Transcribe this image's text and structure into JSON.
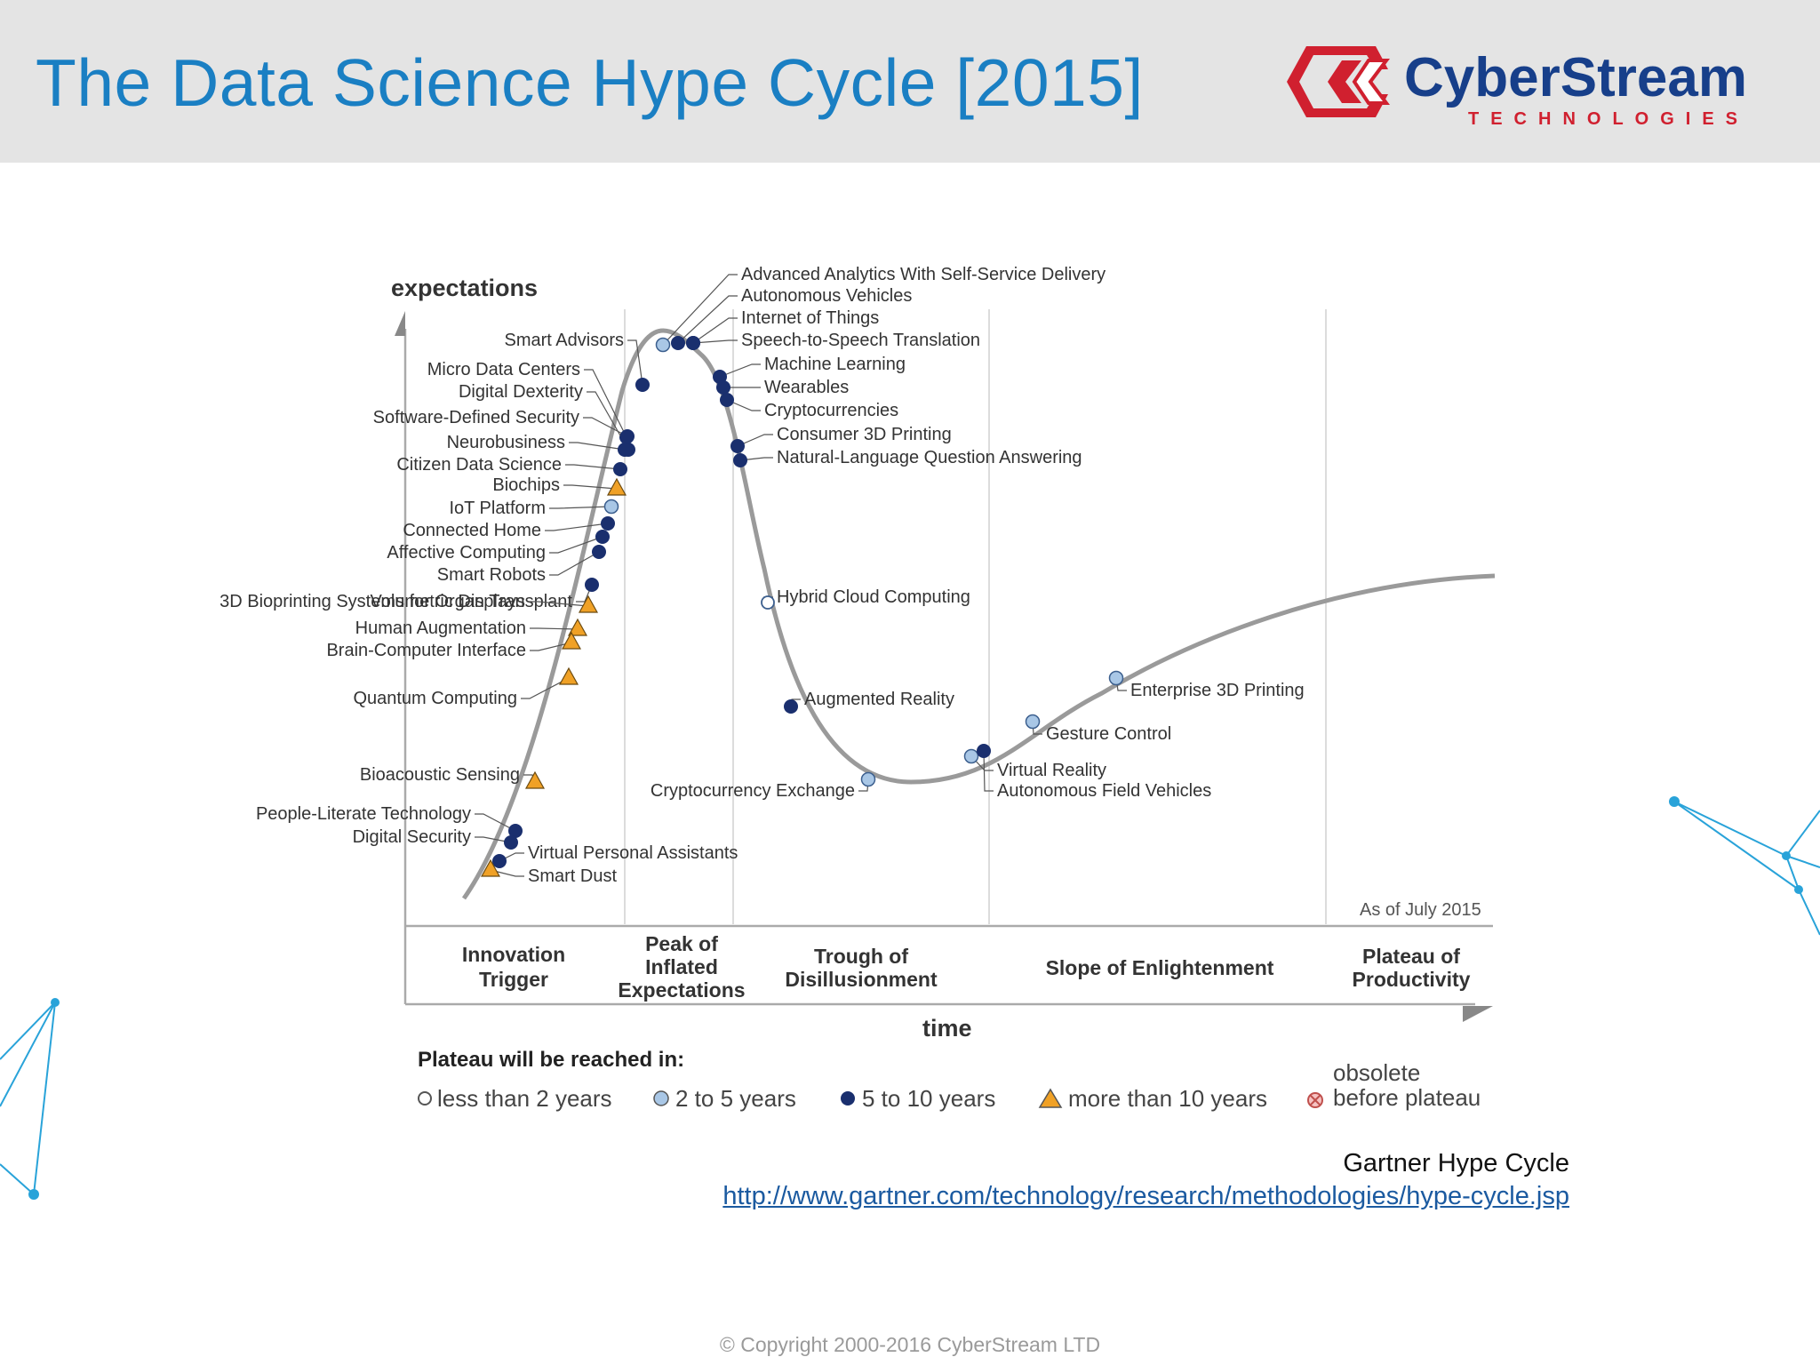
{
  "slide": {
    "title": "The Data Science Hype Cycle [2015]",
    "brand": {
      "name": "CyberStream",
      "tagline": "TECHNOLOGIES"
    },
    "source_caption": "Gartner Hype Cycle",
    "source_url": "http://www.gartner.com/technology/research/methodologies/hype-cycle.jsp",
    "copyright": "© Copyright 2000-2016 CyberStream LTD"
  },
  "colors": {
    "title": "#1a7fc3",
    "header_bg": "#e4e4e4",
    "logo_red": "#d0202f",
    "logo_blue": "#173f8a",
    "curve": "#999999",
    "dot_dark": "#1a2f6e",
    "dot_light": "#a9c7e6",
    "triangle": "#f0a126",
    "network": "#29a3d9"
  },
  "diagram": {
    "y_axis_label": "expectations",
    "x_axis_label": "time",
    "as_of": "As of July 2015",
    "phases": [
      "Innovation Trigger",
      "Peak of Inflated Expectations",
      "Trough of Disillusionment",
      "Slope of Enlightenment",
      "Plateau of Productivity"
    ],
    "legend_title": "Plateau will be reached in:",
    "legend": [
      {
        "symbol": "open-circle",
        "label": "less than 2 years"
      },
      {
        "symbol": "light-circle",
        "label": "2 to 5 years"
      },
      {
        "symbol": "dark-circle",
        "label": "5 to 10 years"
      },
      {
        "symbol": "triangle",
        "label": "more than 10 years"
      },
      {
        "symbol": "crossed-circle",
        "label": "obsolete before plateau"
      }
    ],
    "technologies": [
      {
        "name": "Advanced Analytics With Self-Service Delivery",
        "symbol": "light-circle"
      },
      {
        "name": "Autonomous Vehicles",
        "symbol": "dark-circle"
      },
      {
        "name": "Internet of Things",
        "symbol": "dark-circle"
      },
      {
        "name": "Speech-to-Speech Translation",
        "symbol": "dark-circle"
      },
      {
        "name": "Machine Learning",
        "symbol": "dark-circle"
      },
      {
        "name": "Wearables",
        "symbol": "dark-circle"
      },
      {
        "name": "Cryptocurrencies",
        "symbol": "dark-circle"
      },
      {
        "name": "Consumer 3D Printing",
        "symbol": "dark-circle"
      },
      {
        "name": "Natural-Language Question Answering",
        "symbol": "dark-circle"
      },
      {
        "name": "Smart Advisors",
        "symbol": "dark-circle"
      },
      {
        "name": "Micro Data Centers",
        "symbol": "dark-circle"
      },
      {
        "name": "Digital Dexterity",
        "symbol": "dark-circle"
      },
      {
        "name": "Software-Defined Security",
        "symbol": "dark-circle"
      },
      {
        "name": "Neurobusiness",
        "symbol": "dark-circle"
      },
      {
        "name": "Citizen Data Science",
        "symbol": "dark-circle"
      },
      {
        "name": "Biochips",
        "symbol": "triangle"
      },
      {
        "name": "IoT Platform",
        "symbol": "light-circle"
      },
      {
        "name": "Connected Home",
        "symbol": "dark-circle"
      },
      {
        "name": "Affective Computing",
        "symbol": "dark-circle"
      },
      {
        "name": "Smart Robots",
        "symbol": "dark-circle"
      },
      {
        "name": "3D Bioprinting Systems for Organ Transplant",
        "symbol": "dark-circle"
      },
      {
        "name": "Volumetric Displays",
        "symbol": "triangle"
      },
      {
        "name": "Human Augmentation",
        "symbol": "triangle"
      },
      {
        "name": "Brain-Computer Interface",
        "symbol": "triangle"
      },
      {
        "name": "Quantum Computing",
        "symbol": "triangle"
      },
      {
        "name": "Bioacoustic Sensing",
        "symbol": "triangle"
      },
      {
        "name": "People-Literate Technology",
        "symbol": "dark-circle"
      },
      {
        "name": "Digital Security",
        "symbol": "dark-circle"
      },
      {
        "name": "Virtual Personal Assistants",
        "symbol": "dark-circle"
      },
      {
        "name": "Smart Dust",
        "symbol": "triangle"
      },
      {
        "name": "Hybrid Cloud Computing",
        "symbol": "open-circle"
      },
      {
        "name": "Augmented Reality",
        "symbol": "dark-circle"
      },
      {
        "name": "Cryptocurrency Exchange",
        "symbol": "light-circle"
      },
      {
        "name": "Virtual Reality",
        "symbol": "light-circle"
      },
      {
        "name": "Autonomous Field Vehicles",
        "symbol": "dark-circle"
      },
      {
        "name": "Gesture Control",
        "symbol": "light-circle"
      },
      {
        "name": "Enterprise 3D Printing",
        "symbol": "light-circle"
      }
    ]
  }
}
